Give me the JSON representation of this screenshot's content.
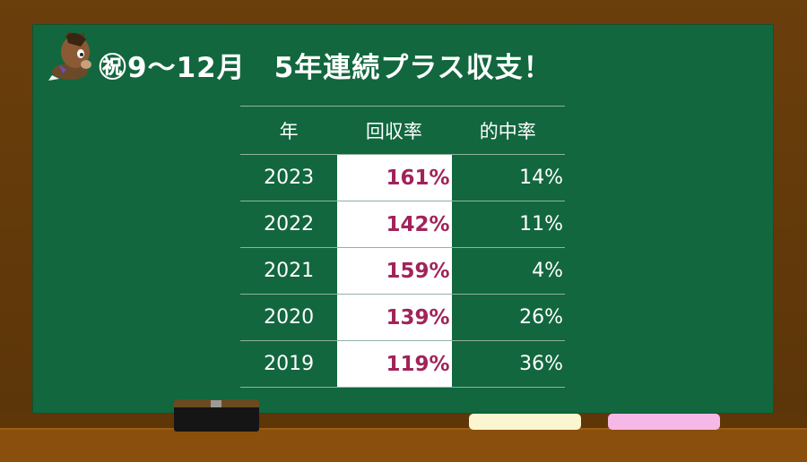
{
  "title": "㊗9～12月　5年連続プラス収支！",
  "table": {
    "headers": [
      "年",
      "回収率",
      "的中率"
    ],
    "rows": [
      {
        "year": "2023",
        "return_rate": "161%",
        "hit_rate": "14%"
      },
      {
        "year": "2022",
        "return_rate": "142%",
        "hit_rate": "11%"
      },
      {
        "year": "2021",
        "return_rate": "159%",
        "hit_rate": "4%"
      },
      {
        "year": "2020",
        "return_rate": "139%",
        "hit_rate": "26%"
      },
      {
        "year": "2019",
        "return_rate": "119%",
        "hit_rate": "36%"
      }
    ]
  },
  "colors": {
    "board": "#12673e",
    "frame": "#6b3f0c",
    "highlight_text": "#a0245a",
    "chalk_yellow": "#fbf6cf",
    "chalk_pink": "#f6b8e6"
  },
  "icons": {
    "mascot": "horse-mascot-icon"
  }
}
